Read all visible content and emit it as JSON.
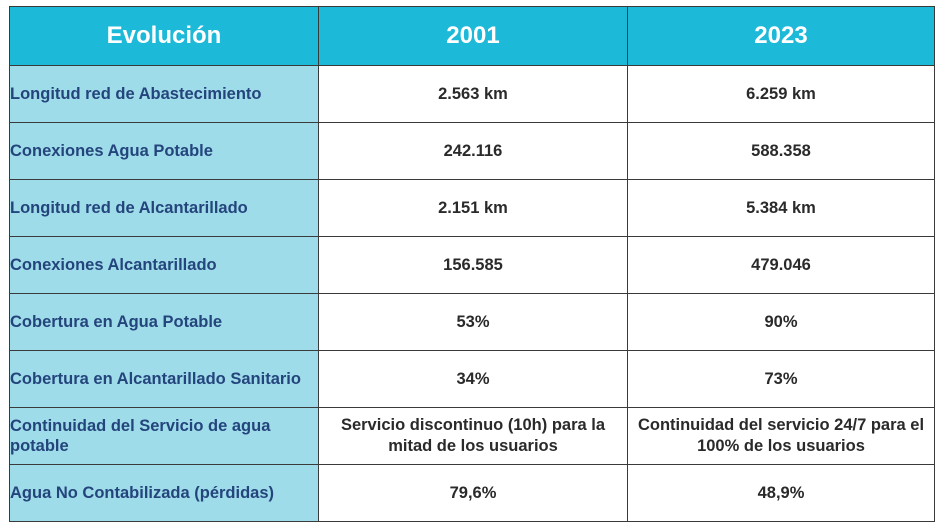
{
  "table": {
    "headers": [
      "Evolución",
      "2001",
      "2023"
    ],
    "rows": [
      {
        "label": "Longitud red de Abastecimiento",
        "y2001": "2.563 km",
        "y2023": "6.259 km"
      },
      {
        "label": "Conexiones Agua Potable",
        "y2001": "242.116",
        "y2023": "588.358"
      },
      {
        "label": "Longitud red de Alcantarillado",
        "y2001": "2.151 km",
        "y2023": "5.384 km"
      },
      {
        "label": "Conexiones Alcantarillado",
        "y2001": "156.585",
        "y2023": "479.046"
      },
      {
        "label": "Cobertura en Agua Potable",
        "y2001": "53%",
        "y2023": "90%"
      },
      {
        "label": "Cobertura en Alcantarillado Sanitario",
        "y2001": "34%",
        "y2023": "73%"
      },
      {
        "label": "Continuidad del Servicio de agua potable",
        "y2001": "Servicio discontinuo (10h) para la mitad de los usuarios",
        "y2023": "Continuidad del servicio 24/7 para el 100% de los usuarios"
      },
      {
        "label": "Agua No Contabilizada (pérdidas)",
        "y2001": "79,6%",
        "y2023": "48,9%"
      }
    ]
  },
  "colors": {
    "header_bg": "#1cb9d9",
    "label_bg": "#9fdcea",
    "label_text": "#24457c"
  }
}
